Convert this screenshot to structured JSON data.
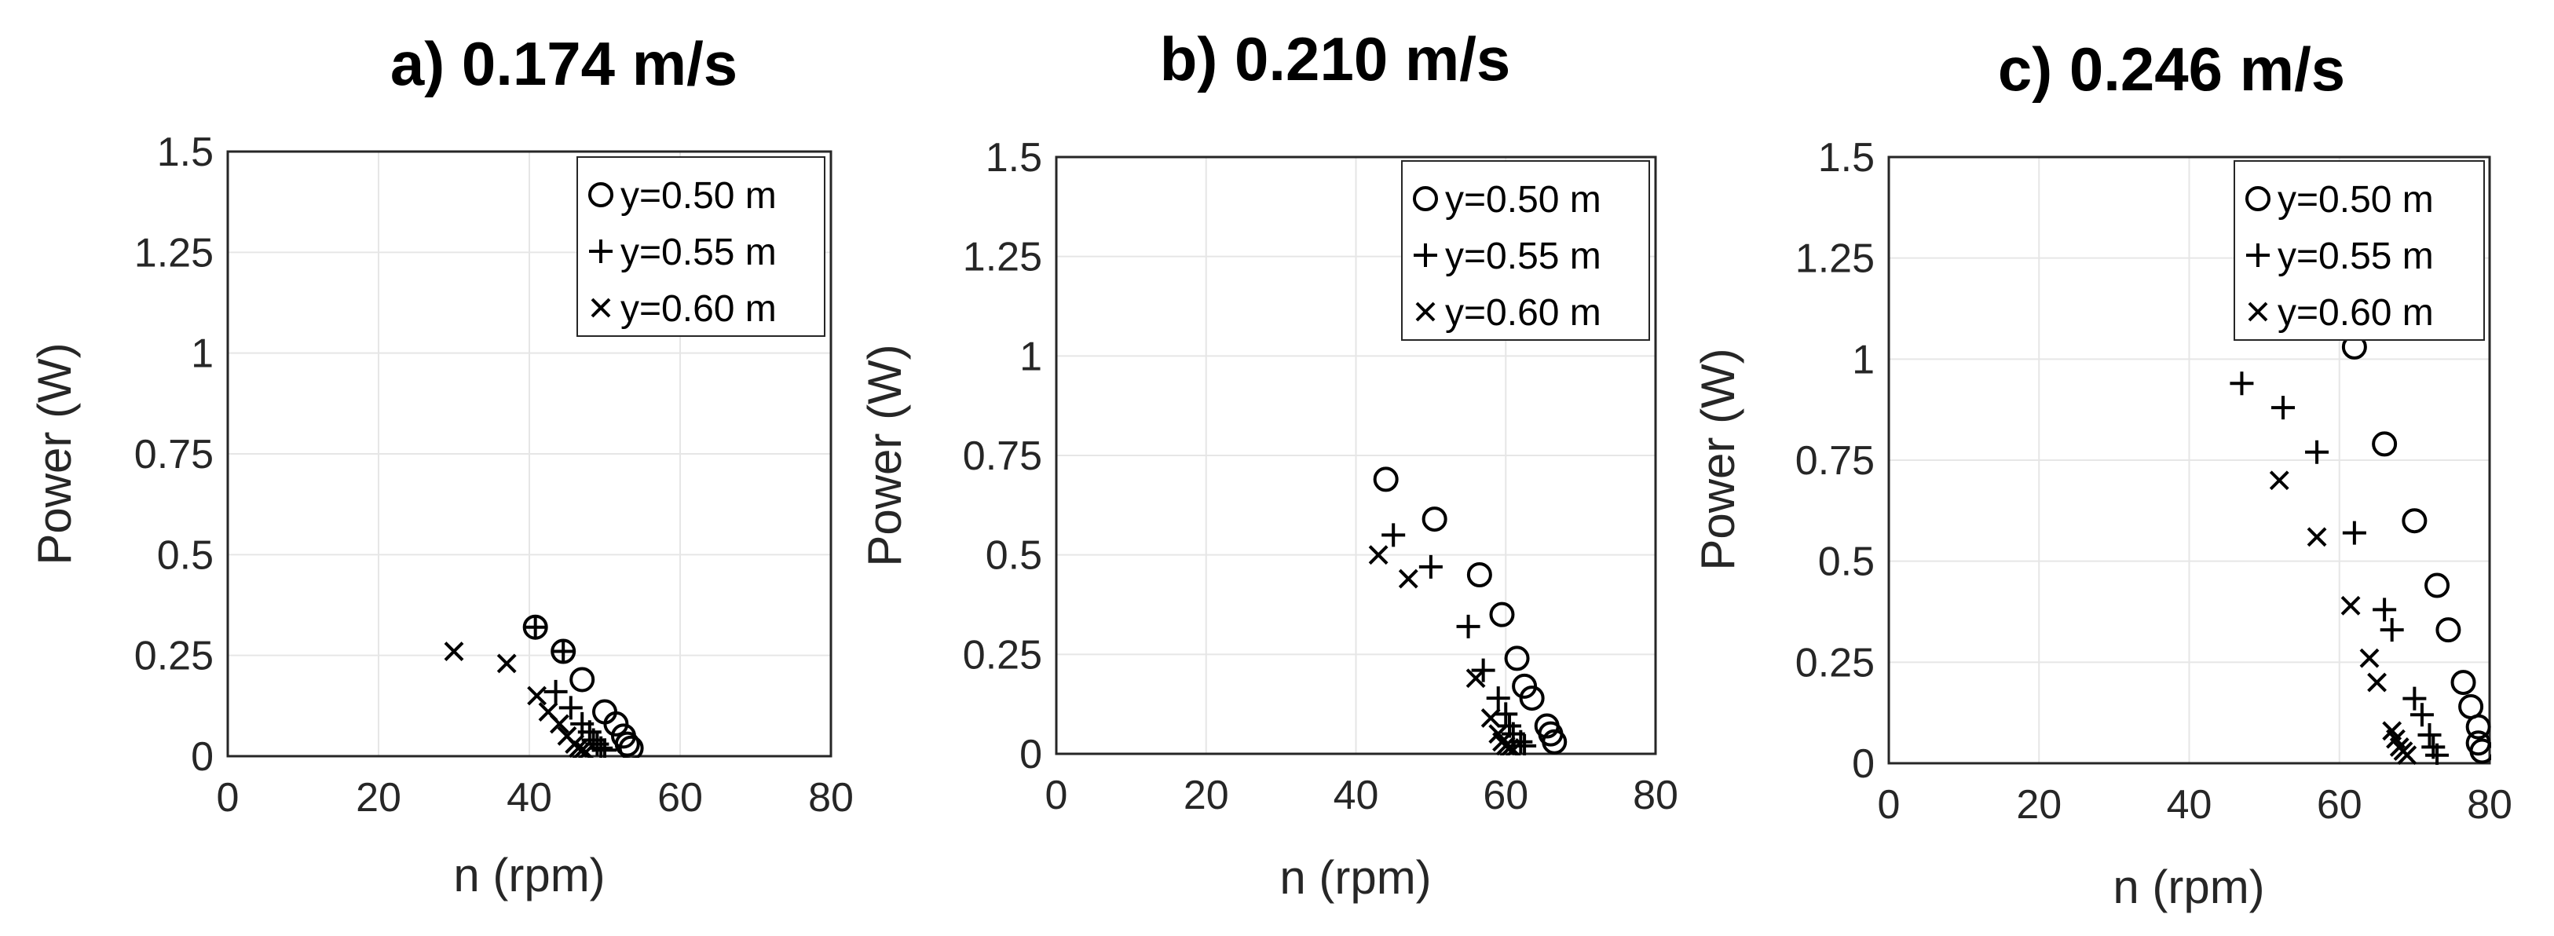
{
  "chart_data": [
    {
      "type": "scatter",
      "title": "a) 0.174 m/s",
      "xlabel": "n (rpm)",
      "ylabel": "Power (W)",
      "xlim": [
        0,
        80
      ],
      "ylim": [
        0,
        1.5
      ],
      "xticks": [
        "0",
        "20",
        "40",
        "60",
        "80"
      ],
      "yticks": [
        "0",
        "0.25",
        "0.5",
        "0.75",
        "1",
        "1.25",
        "1.5"
      ],
      "grid": true,
      "legend_position": "top-right",
      "series": [
        {
          "name": "y=0.50 m",
          "marker": "circle",
          "points": [
            [
              40.8,
              0.32
            ],
            [
              44.5,
              0.26
            ],
            [
              47,
              0.19
            ],
            [
              50,
              0.11
            ],
            [
              51.5,
              0.08
            ],
            [
              52.5,
              0.05
            ],
            [
              53,
              0.03
            ],
            [
              53.5,
              0.02
            ]
          ]
        },
        {
          "name": "y=0.55 m",
          "marker": "plus",
          "points": [
            [
              40.8,
              0.32
            ],
            [
              44.5,
              0.26
            ],
            [
              43.5,
              0.16
            ],
            [
              45.5,
              0.12
            ],
            [
              47,
              0.08
            ],
            [
              48,
              0.06
            ],
            [
              48.5,
              0.04
            ],
            [
              49,
              0.03
            ],
            [
              49.5,
              0.02
            ],
            [
              50,
              0.015
            ]
          ]
        },
        {
          "name": "y=0.60 m",
          "marker": "x",
          "points": [
            [
              30,
              0.26
            ],
            [
              37,
              0.23
            ],
            [
              41,
              0.15
            ],
            [
              42.5,
              0.11
            ],
            [
              44,
              0.08
            ],
            [
              45,
              0.05
            ],
            [
              46,
              0.03
            ],
            [
              46.5,
              0.02
            ],
            [
              47,
              0.015
            ],
            [
              47.5,
              0.01
            ]
          ]
        }
      ]
    },
    {
      "type": "scatter",
      "title": "b) 0.210 m/s",
      "xlabel": "n (rpm)",
      "ylabel": "Power (W)",
      "xlim": [
        0,
        80
      ],
      "ylim": [
        0,
        1.5
      ],
      "xticks": [
        "0",
        "20",
        "40",
        "60",
        "80"
      ],
      "yticks": [
        "0",
        "0.25",
        "0.5",
        "0.75",
        "1",
        "1.25",
        "1.5"
      ],
      "grid": true,
      "legend_position": "top-right",
      "series": [
        {
          "name": "y=0.50 m",
          "marker": "circle",
          "points": [
            [
              44,
              0.69
            ],
            [
              50.5,
              0.59
            ],
            [
              56.5,
              0.45
            ],
            [
              59.5,
              0.35
            ],
            [
              61.5,
              0.24
            ],
            [
              62.5,
              0.17
            ],
            [
              63.5,
              0.14
            ],
            [
              65.5,
              0.07
            ],
            [
              66,
              0.05
            ],
            [
              66.5,
              0.03
            ]
          ]
        },
        {
          "name": "y=0.55 m",
          "marker": "plus",
          "points": [
            [
              45,
              0.55
            ],
            [
              50,
              0.47
            ],
            [
              55,
              0.32
            ],
            [
              57,
              0.21
            ],
            [
              59,
              0.14
            ],
            [
              60,
              0.1
            ],
            [
              60.5,
              0.07
            ],
            [
              61,
              0.05
            ],
            [
              62,
              0.03
            ],
            [
              62.5,
              0.02
            ]
          ]
        },
        {
          "name": "y=0.60 m",
          "marker": "x",
          "points": [
            [
              43,
              0.5
            ],
            [
              47,
              0.44
            ],
            [
              56,
              0.19
            ],
            [
              58,
              0.09
            ],
            [
              59,
              0.05
            ],
            [
              59.5,
              0.03
            ],
            [
              60,
              0.02
            ],
            [
              60.5,
              0.015
            ],
            [
              61,
              0.01
            ]
          ]
        }
      ]
    },
    {
      "type": "scatter",
      "title": "c) 0.246 m/s",
      "xlabel": "n (rpm)",
      "ylabel": "Power (W)",
      "xlim": [
        0,
        80
      ],
      "ylim": [
        0,
        1.5
      ],
      "xticks": [
        "0",
        "20",
        "40",
        "60",
        "80"
      ],
      "yticks": [
        "0",
        "0.25",
        "0.5",
        "0.75",
        "1",
        "1.25",
        "1.5"
      ],
      "grid": true,
      "legend_position": "top-right",
      "series": [
        {
          "name": "y=0.50 m",
          "marker": "circle",
          "points": [
            [
              62,
              1.03
            ],
            [
              66,
              0.79
            ],
            [
              70,
              0.6
            ],
            [
              73,
              0.44
            ],
            [
              74.5,
              0.33
            ],
            [
              76.5,
              0.2
            ],
            [
              77.5,
              0.14
            ],
            [
              78.5,
              0.09
            ],
            [
              78.5,
              0.05
            ],
            [
              79,
              0.03
            ]
          ]
        },
        {
          "name": "y=0.55 m",
          "marker": "plus",
          "points": [
            [
              47,
              0.94
            ],
            [
              52.5,
              0.88
            ],
            [
              57,
              0.77
            ],
            [
              62,
              0.57
            ],
            [
              66,
              0.38
            ],
            [
              67,
              0.33
            ],
            [
              70,
              0.16
            ],
            [
              71,
              0.12
            ],
            [
              72,
              0.07
            ],
            [
              72.5,
              0.04
            ],
            [
              73,
              0.02
            ]
          ]
        },
        {
          "name": "y=0.60 m",
          "marker": "x",
          "points": [
            [
              52,
              0.7
            ],
            [
              57,
              0.56
            ],
            [
              61.5,
              0.39
            ],
            [
              64,
              0.26
            ],
            [
              65,
              0.2
            ],
            [
              67,
              0.08
            ],
            [
              67.5,
              0.06
            ],
            [
              68,
              0.04
            ],
            [
              68.5,
              0.03
            ],
            [
              69,
              0.02
            ]
          ]
        }
      ]
    }
  ]
}
